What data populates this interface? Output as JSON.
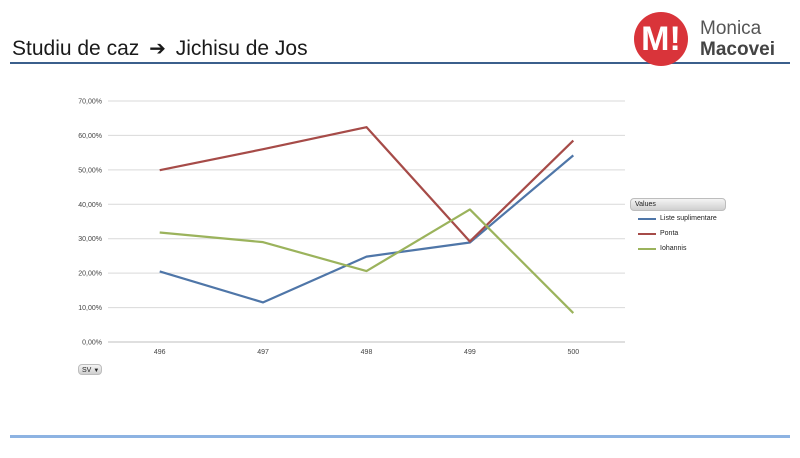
{
  "slide": {
    "title_part1": "Studiu de caz",
    "title_arrow": "➔",
    "title_part2": "Jichisu de Jos"
  },
  "logo": {
    "mark": "M!",
    "name_line1": "Monica",
    "name_line2": "Macovei"
  },
  "colors": {
    "accent_rule": "#3b5f8c",
    "bottom_rule": "#8db3e2",
    "logo_red": "#d9343a"
  },
  "chart_data": {
    "type": "line",
    "categories": [
      "496",
      "497",
      "498",
      "499",
      "500"
    ],
    "series": [
      {
        "name": "Liste suplimentare",
        "color": "#4f76a8",
        "values": [
          20.5,
          11.5,
          24.8,
          28.9,
          54.2
        ]
      },
      {
        "name": "Ponta",
        "color": "#a64b48",
        "values": [
          49.9,
          56.0,
          62.4,
          29.2,
          58.5
        ]
      },
      {
        "name": "Iohannis",
        "color": "#9bb35c",
        "values": [
          31.8,
          29.0,
          20.6,
          38.5,
          8.4
        ]
      }
    ],
    "yticks": [
      "0,00%",
      "10,00%",
      "20,00%",
      "30,00%",
      "40,00%",
      "50,00%",
      "60,00%",
      "70,00%"
    ],
    "ylim": [
      0,
      70
    ],
    "grid": true,
    "legend_title": "Values",
    "legend_position": "right",
    "field_button": "SV"
  }
}
